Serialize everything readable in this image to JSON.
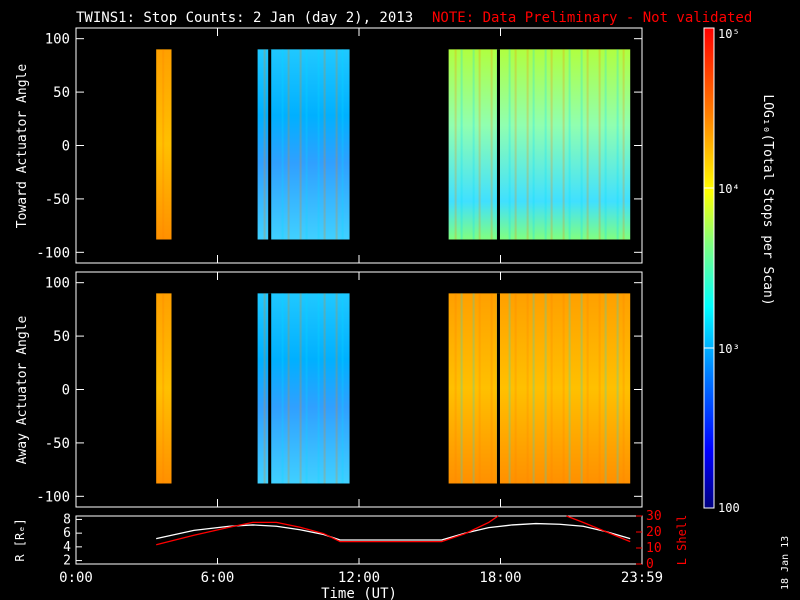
{
  "title": "TWINS1: Stop Counts:  2 Jan (day   2), 2013",
  "note": "NOTE: Data Preliminary - Not validated",
  "colorbar": {
    "label": "LOG₁₀(Total Stops per Scan)",
    "ticks": [
      {
        "label": "10⁵",
        "value": 100000
      },
      {
        "label": "10⁴",
        "value": 10000
      },
      {
        "label": "10³",
        "value": 1000
      },
      {
        "label": "100",
        "value": 100
      }
    ],
    "colors": [
      "#00007f",
      "#0000ff",
      "#007fff",
      "#00ffff",
      "#7fff7f",
      "#ffff00",
      "#ff7f00",
      "#ff0000"
    ]
  },
  "side_stamp": "18 Jan 13",
  "chart_data": [
    {
      "type": "heatmap",
      "name": "toward",
      "ylabel": "Toward Actuator Angle",
      "ylim": [
        -110,
        110
      ],
      "yticks": [
        100,
        50,
        0,
        -50,
        -100
      ],
      "xlim": [
        0,
        24
      ],
      "scan_bands": [
        {
          "start": 3.4,
          "end": 4.05,
          "level": "high"
        },
        {
          "start": 7.7,
          "end": 11.6,
          "level": "medium"
        },
        {
          "start": 15.8,
          "end": 23.5,
          "level": "medium-high"
        }
      ],
      "angle_range": [
        -88,
        90
      ]
    },
    {
      "type": "heatmap",
      "name": "away",
      "ylabel": "Away Actuator Angle",
      "ylim": [
        -110,
        110
      ],
      "yticks": [
        100,
        50,
        0,
        -50,
        -100
      ],
      "xlim": [
        0,
        24
      ],
      "scan_bands": [
        {
          "start": 3.4,
          "end": 4.05,
          "level": "high"
        },
        {
          "start": 7.7,
          "end": 11.6,
          "level": "medium"
        },
        {
          "start": 15.8,
          "end": 23.5,
          "level": "high"
        }
      ],
      "angle_range": [
        -88,
        90
      ]
    },
    {
      "type": "line",
      "name": "orbit",
      "xlabel": "Time (UT)",
      "xticks": [
        "0:00",
        "6:00",
        "12:00",
        "18:00",
        "23:59"
      ],
      "xtick_values": [
        0,
        6,
        12,
        18,
        24
      ],
      "xlim": [
        0,
        24
      ],
      "left_axis": {
        "label": "R [Rₑ]",
        "ylim": [
          1.5,
          8.5
        ],
        "ticks": [
          2,
          4,
          6,
          8
        ]
      },
      "right_axis": {
        "label": "L Shell",
        "ylim": [
          0,
          30
        ],
        "ticks": [
          0,
          10,
          20,
          30
        ],
        "color": "#ff0000"
      },
      "series": [
        {
          "axis": "left",
          "color": "#ffffff",
          "x": [
            3.4,
            5.0,
            6.5,
            7.5,
            8.5,
            9.5,
            10.5,
            11.2,
            12.5,
            14.0,
            15.5,
            16.5,
            17.5,
            18.5,
            19.5,
            20.5,
            21.5,
            22.5,
            23.5
          ],
          "y": [
            5.2,
            6.4,
            7.0,
            7.2,
            7.0,
            6.5,
            5.8,
            5.0,
            5.0,
            5.0,
            5.0,
            6.0,
            6.8,
            7.2,
            7.4,
            7.3,
            7.0,
            6.2,
            5.2
          ]
        },
        {
          "axis": "right",
          "color": "#ff0000",
          "x": [
            3.4,
            5.0,
            6.5,
            7.5,
            8.5,
            9.5,
            10.5,
            11.2,
            12.5,
            14.0,
            15.5,
            16.5,
            17.5,
            17.9
          ],
          "y": [
            12,
            18,
            23,
            26,
            26,
            23,
            19,
            14,
            14,
            14,
            14,
            19,
            26,
            31
          ]
        },
        {
          "axis": "right",
          "color": "#ff0000",
          "x": [
            20.8,
            21.5,
            22.5,
            23.5
          ],
          "y": [
            31,
            26,
            20,
            14
          ]
        }
      ]
    }
  ]
}
